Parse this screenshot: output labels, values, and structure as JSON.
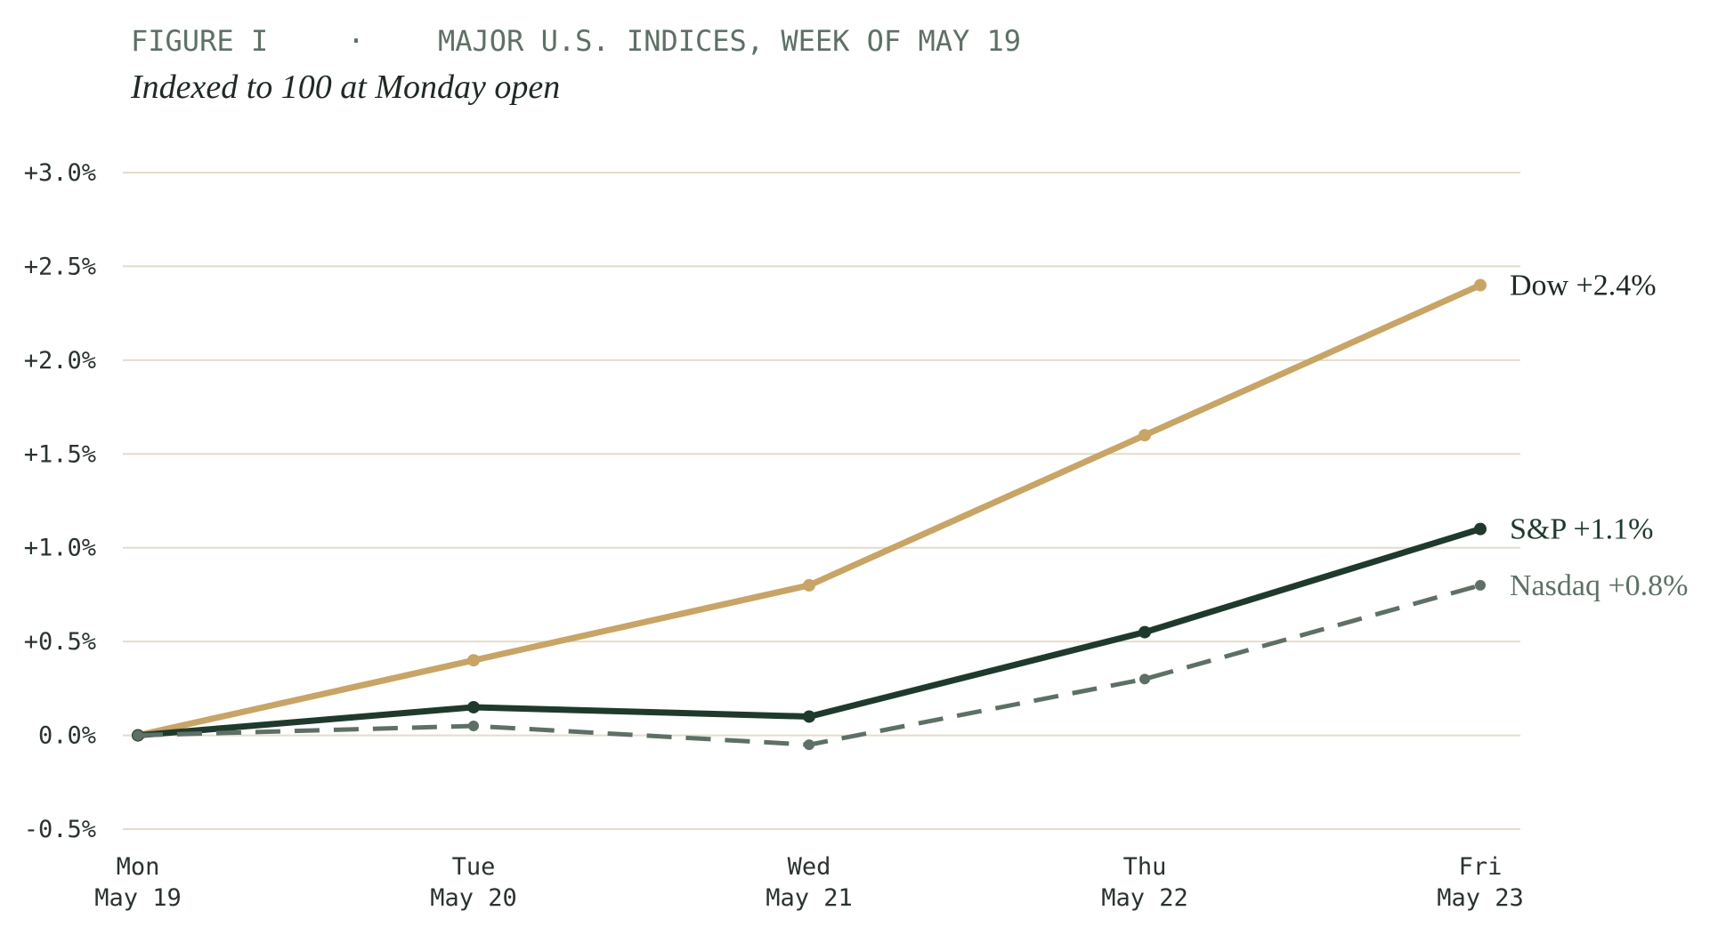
{
  "chart_data": {
    "type": "line",
    "figure_label": "FIGURE I",
    "title": "MAJOR U.S. INDICES, WEEK OF MAY 19",
    "subtitle": "Indexed to 100 at Monday open",
    "categories": [
      [
        "Mon",
        "May 19"
      ],
      [
        "Tue",
        "May 20"
      ],
      [
        "Wed",
        "May 21"
      ],
      [
        "Thu",
        "May 22"
      ],
      [
        "Fri",
        "May 23"
      ]
    ],
    "series": [
      {
        "name": "Dow +2.4%",
        "color": "#c8a466",
        "dashed": false,
        "values": [
          0,
          0.4,
          0.8,
          1.6,
          2.4
        ]
      },
      {
        "name": "S&P +1.1%",
        "color": "#1f3a2d",
        "dashed": false,
        "values": [
          0,
          0.15,
          0.1,
          0.55,
          1.1
        ]
      },
      {
        "name": "Nasdaq +0.8%",
        "color": "#5e7065",
        "dashed": true,
        "values": [
          0,
          0.05,
          -0.05,
          0.3,
          0.8
        ]
      }
    ],
    "ylim": [
      -0.5,
      3
    ],
    "yticks": [
      {
        "value": -0.5,
        "label": "-0.5%"
      },
      {
        "value": 0,
        "label": "0.0%"
      },
      {
        "value": 0.5,
        "label": "+0.5%"
      },
      {
        "value": 1,
        "label": "+1.0%"
      },
      {
        "value": 1.5,
        "label": "+1.5%"
      },
      {
        "value": 2,
        "label": "+2.0%"
      },
      {
        "value": 2.5,
        "label": "+2.5%"
      },
      {
        "value": 3,
        "label": "+3.0%"
      }
    ],
    "grid": true
  }
}
